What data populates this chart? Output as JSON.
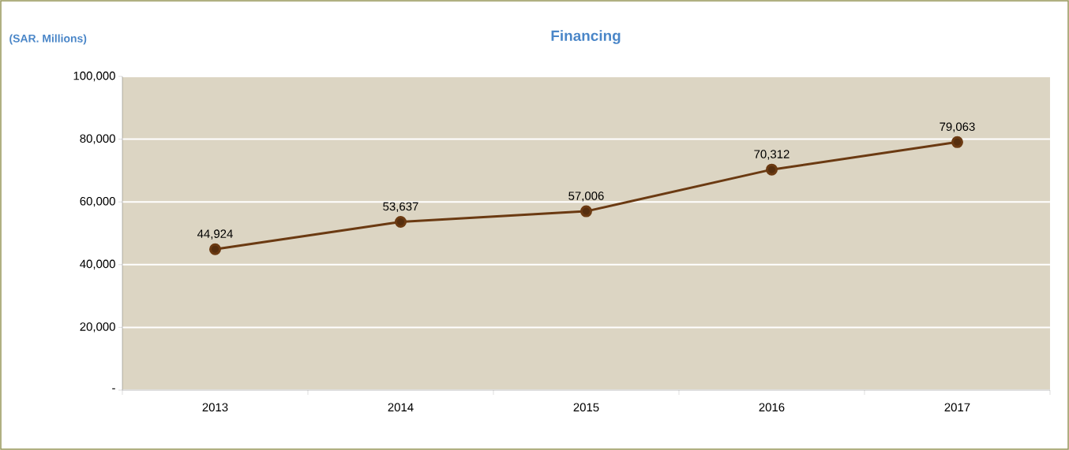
{
  "chart_data": {
    "type": "line",
    "title": "Financing",
    "ylabel": "(SAR. Millions)",
    "categories": [
      "2013",
      "2014",
      "2015",
      "2016",
      "2017"
    ],
    "values": [
      44924,
      53637,
      57006,
      70312,
      79063
    ],
    "value_labels": [
      "44,924",
      "53,637",
      "57,006",
      "70,312",
      "79,063"
    ],
    "color": "#6b3a12",
    "marker": "circle",
    "line_style": "solid",
    "grid": "y",
    "ylim": [
      0,
      100000
    ],
    "yticks": [
      {
        "value": 0,
        "label": "-"
      },
      {
        "value": 20000,
        "label": "20,000"
      },
      {
        "value": 40000,
        "label": "40,000"
      },
      {
        "value": 60000,
        "label": "60,000"
      },
      {
        "value": 80000,
        "label": "80,000"
      },
      {
        "value": 100000,
        "label": "100,000"
      }
    ]
  }
}
